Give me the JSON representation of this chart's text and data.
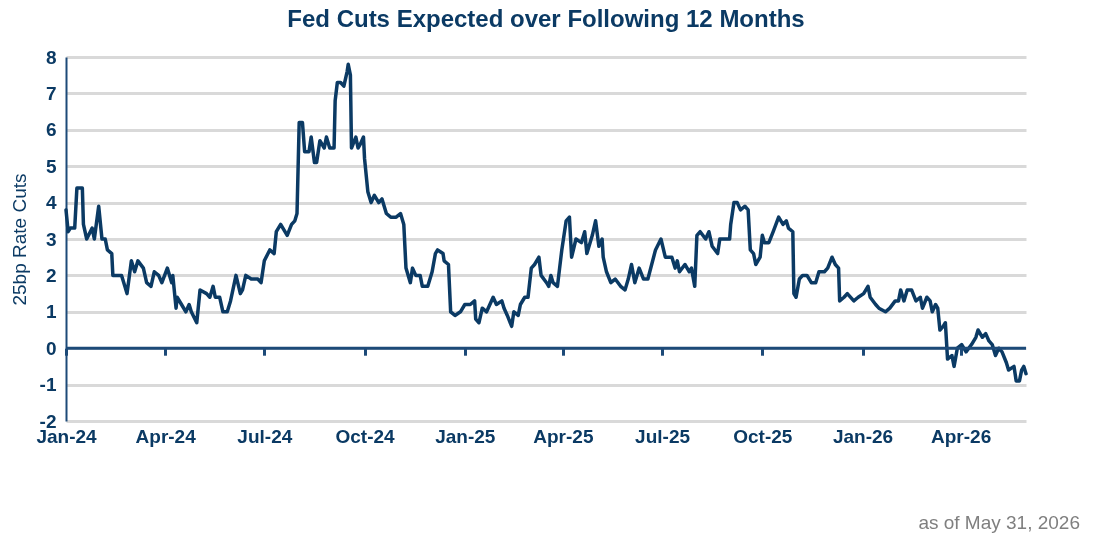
{
  "chart_data": {
    "type": "line",
    "title": "Fed Cuts Expected over Following 12 Months",
    "ylabel": "25bp Rate Cuts",
    "x": [
      "2024-01-01",
      "2024-01-03",
      "2024-01-05",
      "2024-01-09",
      "2024-01-11",
      "2024-01-16",
      "2024-01-17",
      "2024-01-20",
      "2024-01-25",
      "2024-01-27",
      "2024-01-31",
      "2024-02-03",
      "2024-02-06",
      "2024-02-08",
      "2024-02-12",
      "2024-02-13",
      "2024-02-17",
      "2024-02-21",
      "2024-02-24",
      "2024-02-26",
      "2024-03-01",
      "2024-03-04",
      "2024-03-07",
      "2024-03-12",
      "2024-03-15",
      "2024-03-19",
      "2024-03-22",
      "2024-03-26",
      "2024-03-29",
      "2024-04-03",
      "2024-04-07",
      "2024-04-08",
      "2024-04-11",
      "2024-04-12",
      "2024-04-16",
      "2024-04-20",
      "2024-04-23",
      "2024-04-25",
      "2024-04-30",
      "2024-05-03",
      "2024-05-09",
      "2024-05-12",
      "2024-05-15",
      "2024-05-17",
      "2024-05-21",
      "2024-05-24",
      "2024-05-28",
      "2024-05-31",
      "2024-06-05",
      "2024-06-09",
      "2024-06-11",
      "2024-06-14",
      "2024-06-19",
      "2024-06-25",
      "2024-06-28",
      "2024-07-01",
      "2024-07-06",
      "2024-07-10",
      "2024-07-12",
      "2024-07-16",
      "2024-07-22",
      "2024-07-26",
      "2024-07-29",
      "2024-07-31",
      "2024-08-02",
      "2024-08-05",
      "2024-08-07",
      "2024-08-11",
      "2024-08-13",
      "2024-08-16",
      "2024-08-18",
      "2024-08-21",
      "2024-08-25",
      "2024-08-27",
      "2024-08-30",
      "2024-09-03",
      "2024-09-04",
      "2024-09-06",
      "2024-09-09",
      "2024-09-12",
      "2024-09-15",
      "2024-09-16",
      "2024-09-18",
      "2024-09-19",
      "2024-09-23",
      "2024-09-25",
      "2024-09-27",
      "2024-09-30",
      "2024-10-01",
      "2024-10-04",
      "2024-10-07",
      "2024-10-10",
      "2024-10-14",
      "2024-10-17",
      "2024-10-21",
      "2024-10-25",
      "2024-10-30",
      "2024-11-03",
      "2024-11-06",
      "2024-11-08",
      "2024-11-12",
      "2024-11-14",
      "2024-11-17",
      "2024-11-21",
      "2024-11-23",
      "2024-11-28",
      "2024-12-02",
      "2024-12-05",
      "2024-12-07",
      "2024-12-12",
      "2024-12-13",
      "2024-12-17",
      "2024-12-19",
      "2024-12-23",
      "2024-12-28",
      "2025-01-01",
      "2025-01-06",
      "2025-01-10",
      "2025-01-11",
      "2025-01-14",
      "2025-01-17",
      "2025-01-21",
      "2025-01-27",
      "2025-01-30",
      "2025-02-04",
      "2025-02-06",
      "2025-02-09",
      "2025-02-13",
      "2025-02-15",
      "2025-02-19",
      "2025-02-21",
      "2025-02-25",
      "2025-02-28",
      "2025-03-03",
      "2025-03-06",
      "2025-03-10",
      "2025-03-12",
      "2025-03-17",
      "2025-03-19",
      "2025-03-21",
      "2025-03-23",
      "2025-03-27",
      "2025-03-29",
      "2025-03-31",
      "2025-04-04",
      "2025-04-07",
      "2025-04-09",
      "2025-04-13",
      "2025-04-18",
      "2025-04-21",
      "2025-04-23",
      "2025-04-28",
      "2025-05-01",
      "2025-05-04",
      "2025-05-07",
      "2025-05-08",
      "2025-05-11",
      "2025-05-15",
      "2025-05-19",
      "2025-05-24",
      "2025-05-28",
      "2025-05-31",
      "2025-06-03",
      "2025-06-06",
      "2025-06-10",
      "2025-06-14",
      "2025-06-18",
      "2025-06-25",
      "2025-06-30",
      "2025-07-04",
      "2025-07-08",
      "2025-07-10",
      "2025-07-13",
      "2025-07-15",
      "2025-07-17",
      "2025-07-22",
      "2025-07-24",
      "2025-07-26",
      "2025-07-28",
      "2025-07-31",
      "2025-08-02",
      "2025-08-05",
      "2025-08-10",
      "2025-08-13",
      "2025-08-16",
      "2025-08-21",
      "2025-08-23",
      "2025-08-27",
      "2025-09-01",
      "2025-09-02",
      "2025-09-05",
      "2025-09-08",
      "2025-09-11",
      "2025-09-15",
      "2025-09-18",
      "2025-09-20",
      "2025-09-23",
      "2025-09-25",
      "2025-09-29",
      "2025-10-01",
      "2025-10-03",
      "2025-10-07",
      "2025-10-11",
      "2025-10-16",
      "2025-10-20",
      "2025-10-23",
      "2025-10-25",
      "2025-10-29",
      "2025-10-30",
      "2025-11-01",
      "2025-11-04",
      "2025-11-07",
      "2025-11-11",
      "2025-11-15",
      "2025-11-19",
      "2025-11-22",
      "2025-11-27",
      "2025-11-30",
      "2025-12-04",
      "2025-12-07",
      "2025-12-10",
      "2025-12-11",
      "2025-12-15",
      "2025-12-18",
      "2025-12-24",
      "2025-12-28",
      "2026-01-02",
      "2026-01-06",
      "2026-01-08",
      "2026-01-13",
      "2026-01-16",
      "2026-01-22",
      "2026-01-26",
      "2026-01-31",
      "2026-02-03",
      "2026-02-05",
      "2026-02-08",
      "2026-02-11",
      "2026-02-15",
      "2026-02-19",
      "2026-02-23",
      "2026-02-25",
      "2026-03-01",
      "2026-03-04",
      "2026-03-06",
      "2026-03-09",
      "2026-03-11",
      "2026-03-13",
      "2026-03-16",
      "2026-03-18",
      "2026-03-20",
      "2026-03-24",
      "2026-03-26",
      "2026-03-29",
      "2026-04-02",
      "2026-04-06",
      "2026-04-11",
      "2026-04-15",
      "2026-04-17",
      "2026-04-21",
      "2026-04-24",
      "2026-04-27",
      "2026-04-30",
      "2026-05-03",
      "2026-05-06",
      "2026-05-09",
      "2026-05-13",
      "2026-05-15",
      "2026-05-20",
      "2026-05-22",
      "2026-05-25",
      "2026-05-27",
      "2026-05-29",
      "2026-05-31"
    ],
    "series": [
      {
        "color": "#0b3a64",
        "values": [
          3.8,
          3.2,
          3.3,
          3.3,
          4.4,
          4.4,
          3.4,
          3.0,
          3.3,
          3.0,
          3.9,
          3.0,
          3.0,
          2.7,
          2.6,
          2.0,
          2.0,
          2.0,
          1.7,
          1.5,
          2.4,
          2.1,
          2.4,
          2.2,
          1.8,
          1.7,
          2.1,
          2.0,
          1.8,
          2.2,
          1.8,
          2.0,
          1.1,
          1.4,
          1.2,
          1.0,
          1.2,
          1.0,
          0.7,
          1.6,
          1.5,
          1.4,
          1.7,
          1.4,
          1.4,
          1.0,
          1.0,
          1.3,
          2.0,
          1.5,
          1.6,
          2.0,
          1.9,
          1.9,
          1.8,
          2.4,
          2.7,
          2.6,
          3.2,
          3.4,
          3.1,
          3.4,
          3.5,
          3.7,
          6.2,
          6.2,
          5.4,
          5.4,
          5.8,
          5.1,
          5.1,
          5.7,
          5.5,
          5.8,
          5.5,
          5.5,
          6.8,
          7.3,
          7.3,
          7.2,
          7.6,
          7.8,
          7.5,
          5.5,
          5.8,
          5.5,
          5.6,
          5.8,
          5.2,
          4.3,
          4.0,
          4.2,
          4.0,
          4.1,
          3.7,
          3.6,
          3.6,
          3.7,
          3.4,
          2.2,
          1.8,
          2.2,
          2.0,
          2.0,
          1.7,
          1.7,
          2.1,
          2.6,
          2.7,
          2.6,
          2.4,
          2.3,
          1.0,
          0.9,
          1.0,
          1.2,
          1.2,
          1.3,
          0.8,
          0.7,
          1.1,
          1.0,
          1.4,
          1.2,
          1.3,
          1.1,
          0.9,
          0.6,
          1.0,
          0.9,
          1.2,
          1.4,
          1.4,
          2.2,
          2.3,
          2.5,
          2.0,
          1.8,
          1.7,
          2.0,
          1.8,
          1.7,
          2.2,
          2.7,
          3.5,
          3.6,
          2.5,
          3.0,
          2.9,
          3.2,
          2.6,
          3.1,
          3.5,
          2.8,
          3.0,
          2.5,
          2.1,
          1.8,
          1.9,
          1.7,
          1.6,
          1.9,
          2.3,
          1.8,
          2.2,
          1.9,
          1.9,
          2.7,
          3.0,
          2.5,
          2.5,
          2.5,
          2.2,
          2.4,
          2.1,
          2.3,
          2.2,
          2.1,
          2.2,
          1.7,
          3.1,
          3.2,
          3.0,
          3.2,
          2.8,
          2.6,
          3.0,
          3.0,
          3.0,
          3.4,
          4.0,
          4.0,
          3.8,
          3.9,
          3.8,
          2.7,
          2.6,
          2.3,
          2.5,
          3.1,
          2.9,
          2.9,
          3.2,
          3.6,
          3.4,
          3.5,
          3.3,
          3.2,
          1.5,
          1.4,
          1.9,
          2.0,
          2.0,
          1.8,
          1.8,
          2.1,
          2.1,
          2.2,
          2.5,
          2.3,
          2.2,
          1.3,
          1.4,
          1.5,
          1.3,
          1.4,
          1.5,
          1.7,
          1.4,
          1.2,
          1.1,
          1.0,
          1.1,
          1.3,
          1.3,
          1.6,
          1.3,
          1.6,
          1.6,
          1.3,
          1.4,
          1.1,
          1.4,
          1.3,
          1.0,
          1.2,
          1.1,
          0.5,
          0.6,
          0.7,
          -0.3,
          -0.2,
          -0.5,
          0.0,
          0.1,
          -0.1,
          0.1,
          0.3,
          0.5,
          0.3,
          0.4,
          0.2,
          0.1,
          -0.2,
          0.0,
          -0.1,
          -0.4,
          -0.6,
          -0.5,
          -0.9,
          -0.9,
          -0.6,
          -0.5,
          -0.7
        ]
      }
    ],
    "xlim": [
      "2024-01-01",
      "2026-05-31"
    ],
    "xticks": [
      {
        "value": "2024-01-01",
        "label": "Jan-24"
      },
      {
        "value": "2024-04-01",
        "label": "Apr-24"
      },
      {
        "value": "2024-07-01",
        "label": "Jul-24"
      },
      {
        "value": "2024-10-01",
        "label": "Oct-24"
      },
      {
        "value": "2025-01-01",
        "label": "Jan-25"
      },
      {
        "value": "2025-04-01",
        "label": "Apr-25"
      },
      {
        "value": "2025-07-01",
        "label": "Jul-25"
      },
      {
        "value": "2025-10-01",
        "label": "Oct-25"
      },
      {
        "value": "2026-01-01",
        "label": "Jan-26"
      },
      {
        "value": "2026-04-01",
        "label": "Apr-26"
      }
    ],
    "ylim": [
      -2,
      8
    ],
    "yticks": [
      -2,
      -1,
      0,
      1,
      2,
      3,
      4,
      5,
      6,
      7,
      8
    ],
    "ref_lines": [
      {
        "axis": "y",
        "value": 0
      }
    ],
    "grid": "y",
    "marker": "none",
    "line_style": "solid",
    "annotations": [
      "as of May 31, 2026"
    ]
  }
}
